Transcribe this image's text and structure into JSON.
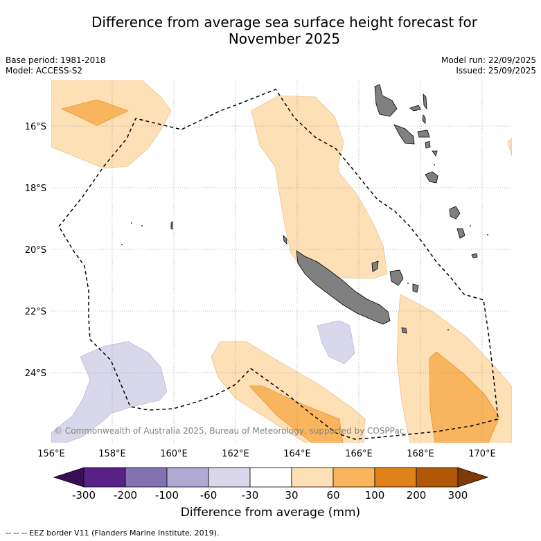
{
  "header": {
    "title_line1": "Difference from average sea surface height forecast for",
    "title_line2": "November 2025",
    "base_period": "Base period: 1981-2018",
    "model": "Model: ACCESS-S2",
    "model_run": "Model run: 22/09/2025",
    "issued": "Issued: 25/09/2025"
  },
  "map": {
    "lat_labels": [
      "16°S",
      "18°S",
      "20°S",
      "22°S",
      "24°S"
    ],
    "lon_labels": [
      "156°E",
      "158°E",
      "160°E",
      "162°E",
      "164°E",
      "166°E",
      "168°E",
      "170°E"
    ],
    "copyright": "© Commonwealth of Australia 2025, Bureau of Meteorology, supported by COSPPac",
    "colors": {
      "pos_30_60": "#fde0b6",
      "pos_60_100": "#f9b55e",
      "neg_30_60": "#d8d8ea",
      "land": "#808080",
      "eez_border": "#000000"
    }
  },
  "colorbar": {
    "ticks": [
      "-300",
      "-200",
      "-100",
      "-60",
      "-30",
      "30",
      "60",
      "100",
      "200",
      "300"
    ],
    "colors": [
      "#3a0e57",
      "#582188",
      "#8373b0",
      "#b0a9d2",
      "#d8d8ea",
      "#ffffff",
      "#fde0b6",
      "#f9b55e",
      "#e0821a",
      "#b15708",
      "#7f3b07"
    ],
    "label": "Difference from average (mm)"
  },
  "footnote": "-- -- -- EEZ border V11 (Flanders Marine Institute, 2019)."
}
